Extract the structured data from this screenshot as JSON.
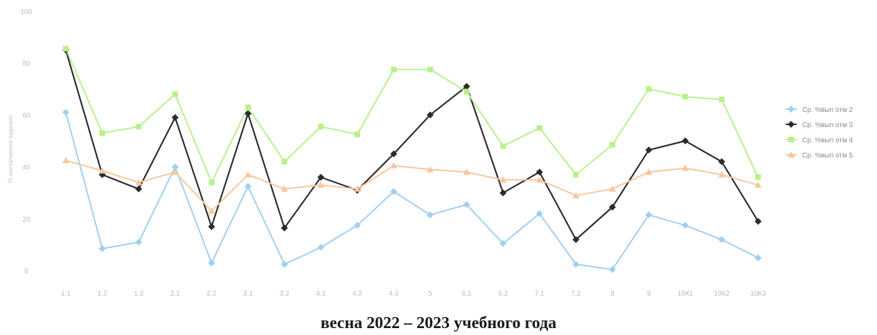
{
  "chart_data": {
    "type": "line",
    "title": "",
    "xlabel": "",
    "ylabel": "% выполнения задания",
    "caption": "весна 2022 – 2023 учебного года",
    "categories": [
      "1.1",
      "1.2",
      "1.3",
      "2.1",
      "2.2",
      "3.1",
      "3.2",
      "4.1",
      "4.2",
      "4.3",
      "5",
      "6.1",
      "6.2",
      "7.1",
      "7.2",
      "8",
      "9",
      "10К1",
      "10К2",
      "10К3"
    ],
    "ylim": [
      0,
      100
    ],
    "yticks": [
      0,
      20,
      40,
      60,
      80,
      100
    ],
    "grid": false,
    "legend_position": "right",
    "series": [
      {
        "name": "Ср. %вып отм 2",
        "color": "#9fd0f2",
        "marker": "diamond",
        "values": [
          61,
          8.5,
          11,
          40,
          3,
          32.5,
          2.5,
          9,
          17.5,
          30.5,
          21.5,
          25.5,
          10.5,
          22,
          2.5,
          0.5,
          21.5,
          17.5,
          12,
          5
        ]
      },
      {
        "name": "Ср. %вып отм 3",
        "color": "#2b2b2b",
        "marker": "diamond",
        "values": [
          85,
          37,
          31.5,
          59,
          17,
          60.5,
          16.5,
          36,
          31,
          45,
          60,
          71,
          30,
          38,
          12,
          24.5,
          46.5,
          50,
          42,
          19
        ]
      },
      {
        "name": "Ср. %вып отм 4",
        "color": "#b8f08a",
        "marker": "square",
        "values": [
          85.5,
          53,
          55.5,
          68,
          34,
          63,
          42,
          55.5,
          52.5,
          77.5,
          77.5,
          69,
          48,
          55,
          37,
          48.5,
          70,
          67,
          66,
          36
        ]
      },
      {
        "name": "Ср. %вып отм 5",
        "color": "#f7c79b",
        "marker": "triangle",
        "values": [
          42.5,
          38.5,
          34,
          38,
          23,
          37,
          31.5,
          33,
          31.5,
          40.5,
          39,
          38,
          35,
          35,
          29,
          31.5,
          38,
          39.5,
          37,
          33
        ]
      }
    ]
  }
}
